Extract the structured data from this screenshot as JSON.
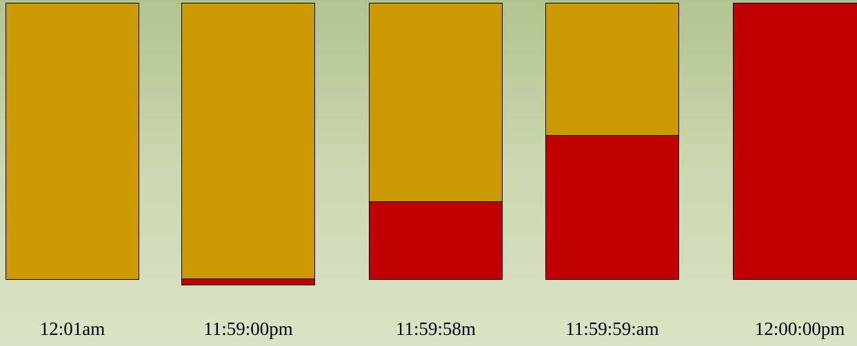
{
  "colors": {
    "remaining": "#cc9900",
    "elapsed": "#c00000",
    "outline": "#000000"
  },
  "bars": [
    {
      "label": "12:01am",
      "elapsed_fraction": 0.0
    },
    {
      "label": "11:59:00pm",
      "elapsed_fraction": 0.02
    },
    {
      "label": "11:59:58m",
      "elapsed_fraction": 0.28
    },
    {
      "label": "11:59:59:am",
      "elapsed_fraction": 0.52
    },
    {
      "label": "12:00:00pm",
      "elapsed_fraction": 1.0
    }
  ]
}
